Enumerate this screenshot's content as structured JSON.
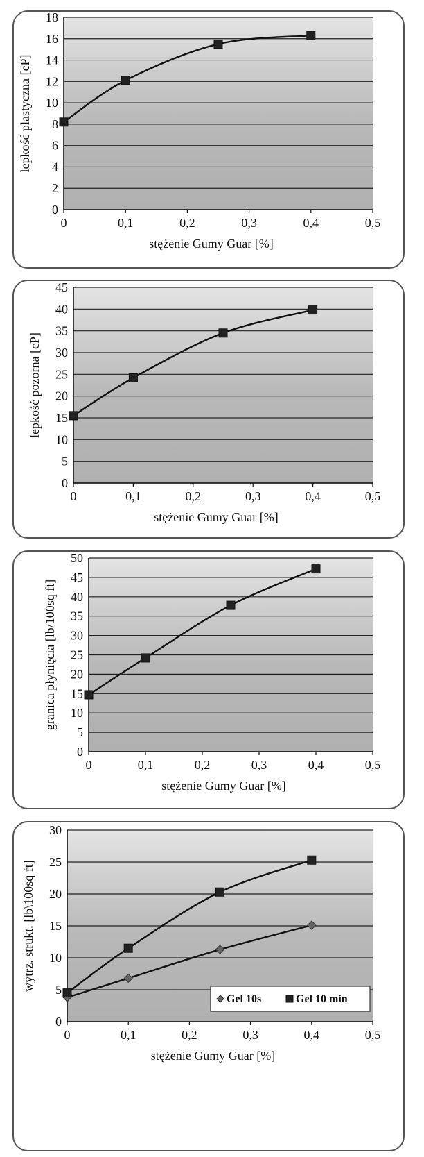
{
  "chart_data": [
    {
      "type": "line",
      "xlabel": "stężenie Gumy Guar [%]",
      "ylabel": "lepkość plastyczna [cP]",
      "xlim": [
        0,
        0.5
      ],
      "ylim": [
        0,
        18
      ],
      "xticks": [
        "0",
        "0,1",
        "0,2",
        "0,3",
        "0,4",
        "0,5"
      ],
      "yticks": [
        "0",
        "2",
        "4",
        "6",
        "8",
        "10",
        "12",
        "14",
        "16",
        "18"
      ],
      "grid": true,
      "series": [
        {
          "marker": "square",
          "color": "#222222",
          "x": [
            0,
            0.1,
            0.25,
            0.4
          ],
          "y": [
            8.2,
            12.1,
            15.5,
            16.3
          ]
        }
      ]
    },
    {
      "type": "line",
      "xlabel": "stężenie Gumy Guar [%]",
      "ylabel": "lepkość pozorna [cP]",
      "xlim": [
        0,
        0.5
      ],
      "ylim": [
        0,
        45
      ],
      "xticks": [
        "0",
        "0,1",
        "0,2",
        "0,3",
        "0,4",
        "0,5"
      ],
      "yticks": [
        "0",
        "5",
        "10",
        "15",
        "20",
        "25",
        "30",
        "35",
        "40",
        "45"
      ],
      "grid": true,
      "series": [
        {
          "marker": "square",
          "color": "#222222",
          "x": [
            0,
            0.1,
            0.25,
            0.4
          ],
          "y": [
            15.5,
            24.2,
            34.5,
            39.8
          ]
        }
      ]
    },
    {
      "type": "line",
      "xlabel": "stężenie Gumy Guar [%]",
      "ylabel": "granica płynięcia [lb/100sq ft]",
      "xlim": [
        0,
        0.5
      ],
      "ylim": [
        0,
        50
      ],
      "xticks": [
        "0",
        "0,1",
        "0,2",
        "0,3",
        "0,4",
        "0,5"
      ],
      "yticks": [
        "0",
        "5",
        "10",
        "15",
        "20",
        "25",
        "30",
        "35",
        "40",
        "45",
        "50"
      ],
      "grid": true,
      "series": [
        {
          "marker": "square",
          "color": "#222222",
          "x": [
            0,
            0.1,
            0.25,
            0.4
          ],
          "y": [
            14.7,
            24.2,
            37.8,
            47.2
          ]
        }
      ]
    },
    {
      "type": "line",
      "xlabel": "stężenie Gumy Guar [%]",
      "ylabel": "wytrz. strukt. [lb\\100sq ft]",
      "xlim": [
        0,
        0.5
      ],
      "ylim": [
        0,
        30
      ],
      "xticks": [
        "0",
        "0,1",
        "0,2",
        "0,3",
        "0,4",
        "0,5"
      ],
      "yticks": [
        "0",
        "5",
        "10",
        "15",
        "20",
        "25",
        "30"
      ],
      "grid": true,
      "legend": "bottom-right",
      "series": [
        {
          "name": "Gel 10s",
          "marker": "diamond",
          "color": "#666666",
          "x": [
            0,
            0.1,
            0.25,
            0.4
          ],
          "y": [
            3.8,
            6.8,
            11.3,
            15.1
          ]
        },
        {
          "name": "Gel 10 min",
          "marker": "square",
          "color": "#222222",
          "x": [
            0,
            0.1,
            0.25,
            0.4
          ],
          "y": [
            4.5,
            11.5,
            20.3,
            25.3
          ]
        }
      ]
    }
  ]
}
